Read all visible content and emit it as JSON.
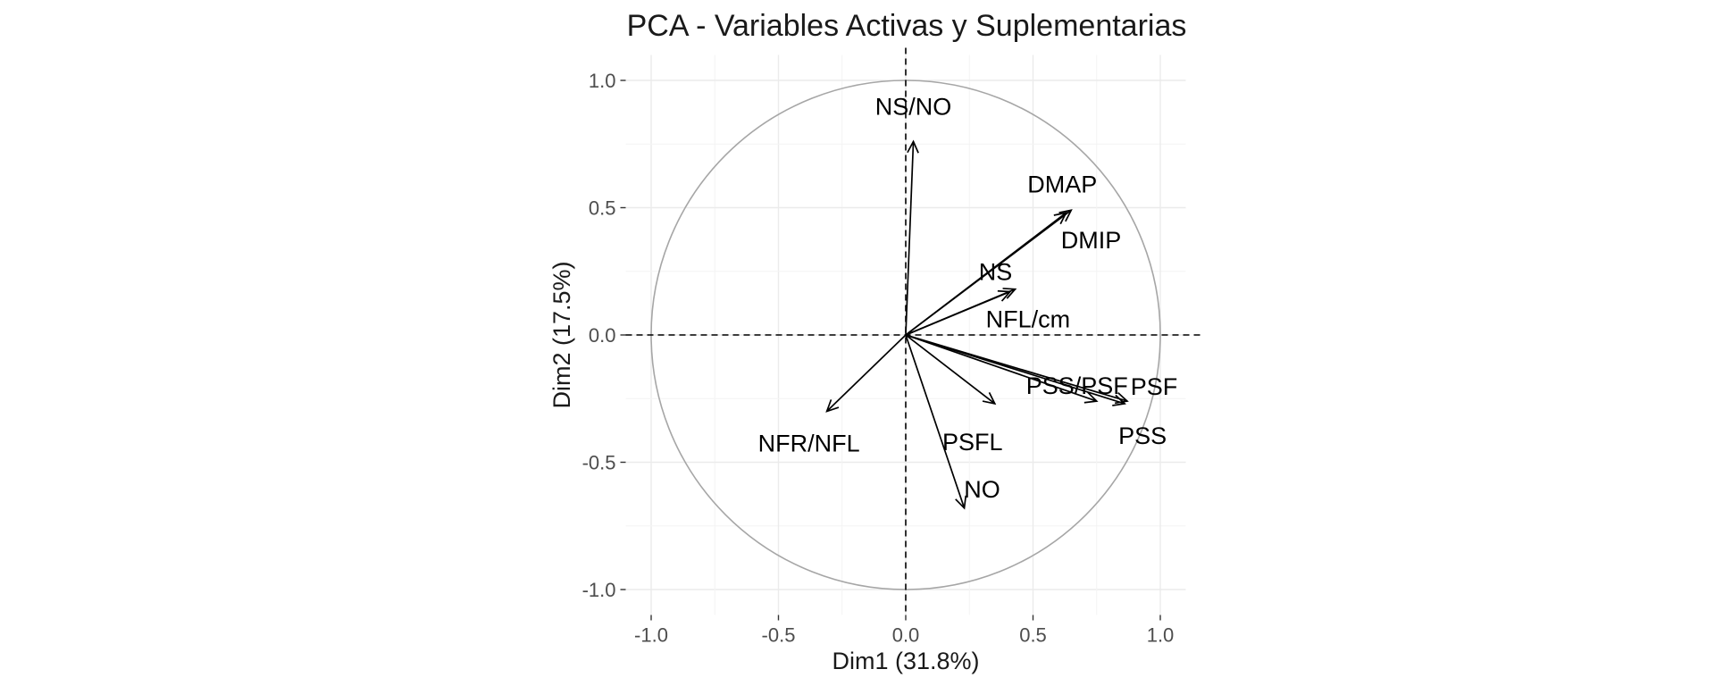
{
  "chart_data": {
    "type": "scatter",
    "subtype": "pca-variable-correlation-circle",
    "title": "PCA - Variables Activas y Suplementarias",
    "xlabel": "Dim1 (31.8%)",
    "ylabel": "Dim2 (17.5%)",
    "xlim": [
      -1.1,
      1.1
    ],
    "ylim": [
      -1.1,
      1.1
    ],
    "x_ticks": [
      -1.0,
      -0.5,
      0.0,
      0.5,
      1.0
    ],
    "x_tick_labels": [
      "-1.0",
      "-0.5",
      "0.0",
      "0.5",
      "1.0"
    ],
    "y_ticks": [
      -1.0,
      -0.5,
      0.0,
      0.5,
      1.0
    ],
    "y_tick_labels": [
      "-1.0",
      "-0.5",
      "0.0",
      "0.5",
      "1.0"
    ],
    "grid": true,
    "unit_circle": true,
    "reference_lines": {
      "x": 0,
      "y": 0,
      "style": "dashed"
    },
    "variables": [
      {
        "name": "NS/NO",
        "x": 0.03,
        "y": 0.76
      },
      {
        "name": "DMAP",
        "x": 0.65,
        "y": 0.49
      },
      {
        "name": "DMIP",
        "x": 0.63,
        "y": 0.48
      },
      {
        "name": "NS",
        "x": 0.43,
        "y": 0.18
      },
      {
        "name": "NFL/cm",
        "x": 0.41,
        "y": 0.17
      },
      {
        "name": "PSS/PSF",
        "x": 0.75,
        "y": -0.26
      },
      {
        "name": "PSF",
        "x": 0.87,
        "y": -0.26
      },
      {
        "name": "PSS",
        "x": 0.86,
        "y": -0.27
      },
      {
        "name": "PSFL",
        "x": 0.35,
        "y": -0.27
      },
      {
        "name": "NO",
        "x": 0.23,
        "y": -0.68
      },
      {
        "name": "NFR/NFL",
        "x": -0.31,
        "y": -0.3
      }
    ],
    "colors": {
      "arrow": "#000000",
      "circle": "#a6a6a6",
      "grid_major": "#ebebeb",
      "grid_minor": "#f4f4f4",
      "text": "#1a1a1a",
      "tick_text": "#4d4d4d"
    }
  }
}
